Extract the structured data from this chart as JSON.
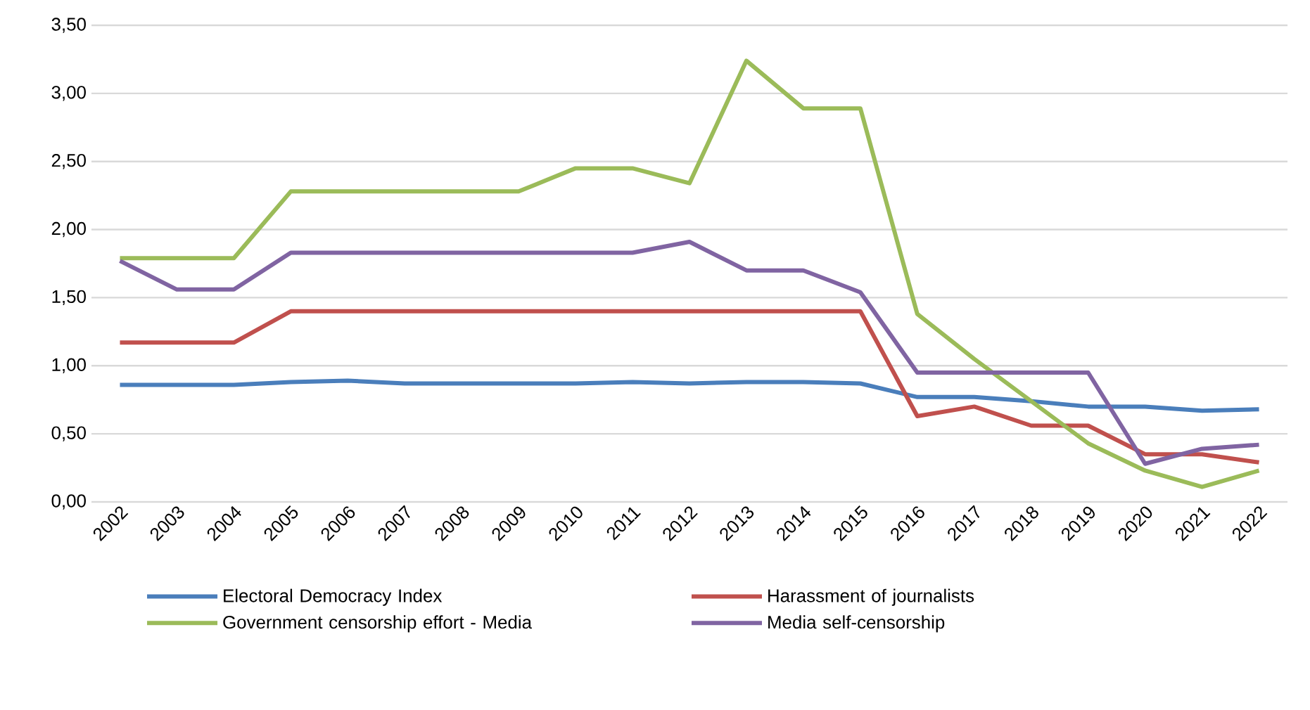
{
  "chart_data": {
    "type": "line",
    "categories": [
      "2002",
      "2003",
      "2004",
      "2005",
      "2006",
      "2007",
      "2008",
      "2009",
      "2010",
      "2011",
      "2012",
      "2013",
      "2014",
      "2015",
      "2016",
      "2017",
      "2018",
      "2019",
      "2020",
      "2021",
      "2022"
    ],
    "series": [
      {
        "name": "Electoral Democracy Index",
        "color": "#4a7ebb",
        "values": [
          0.86,
          0.86,
          0.86,
          0.88,
          0.89,
          0.87,
          0.87,
          0.87,
          0.87,
          0.88,
          0.87,
          0.88,
          0.88,
          0.87,
          0.77,
          0.77,
          0.74,
          0.7,
          0.7,
          0.67,
          0.68
        ]
      },
      {
        "name": "Harassment of journalists",
        "color": "#c0504d",
        "values": [
          1.17,
          1.17,
          1.17,
          1.4,
          1.4,
          1.4,
          1.4,
          1.4,
          1.4,
          1.4,
          1.4,
          1.4,
          1.4,
          1.4,
          0.63,
          0.7,
          0.56,
          0.56,
          0.35,
          0.35,
          0.29
        ]
      },
      {
        "name": "Government censorship effort - Media",
        "color": "#9bbb59",
        "values": [
          1.79,
          1.79,
          1.79,
          2.28,
          2.28,
          2.28,
          2.28,
          2.28,
          2.45,
          2.45,
          2.34,
          3.24,
          2.89,
          2.89,
          1.38,
          1.05,
          0.74,
          0.43,
          0.23,
          0.11,
          0.23
        ]
      },
      {
        "name": "Media self-censorship",
        "color": "#8064a2",
        "values": [
          1.77,
          1.56,
          1.56,
          1.83,
          1.83,
          1.83,
          1.83,
          1.83,
          1.83,
          1.83,
          1.91,
          1.7,
          1.7,
          1.54,
          0.95,
          0.95,
          0.95,
          0.95,
          0.28,
          0.39,
          0.42
        ]
      }
    ],
    "ylim": [
      0,
      3.5
    ],
    "yticks": [
      {
        "value": 0,
        "label": "0,00"
      },
      {
        "value": 0.5,
        "label": "0,50"
      },
      {
        "value": 1,
        "label": "1,00"
      },
      {
        "value": 1.5,
        "label": "1,50"
      },
      {
        "value": 2,
        "label": "2,00"
      },
      {
        "value": 2.5,
        "label": "2,50"
      },
      {
        "value": 3,
        "label": "3,00"
      },
      {
        "value": 3.5,
        "label": "3,50"
      }
    ],
    "grid": "y",
    "legend": "bottom",
    "marker": "none",
    "line_style": "solid"
  }
}
